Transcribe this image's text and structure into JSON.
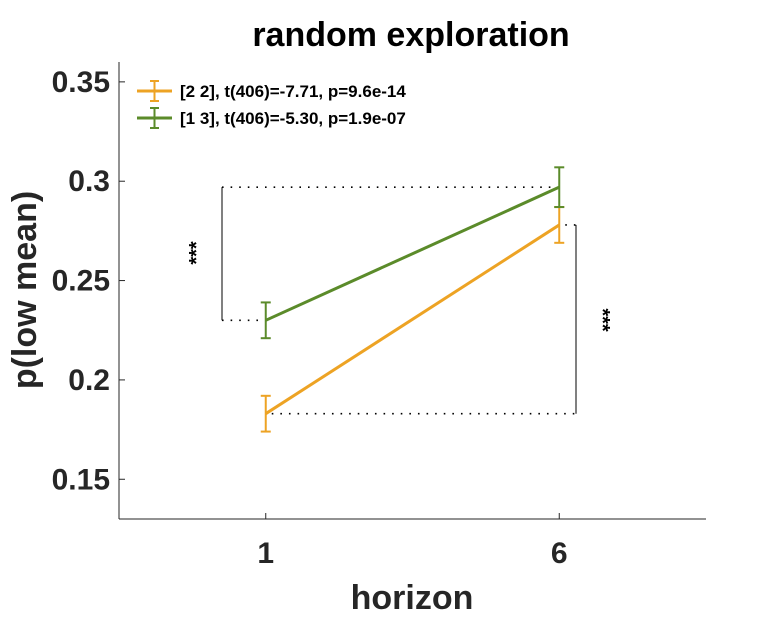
{
  "chart_data": {
    "type": "line",
    "title": "random exploration",
    "xlabel": "horizon",
    "ylabel": "p(low mean)",
    "categories": [
      "1",
      "6"
    ],
    "xlim": [
      0.5,
      2.5
    ],
    "ylim": [
      0.13,
      0.36
    ],
    "yticks": [
      0.15,
      0.2,
      0.25,
      0.3,
      0.35
    ],
    "ytick_labels": [
      "0.15",
      "0.2",
      "0.25",
      "0.3",
      "0.35"
    ],
    "grid": false,
    "legend_position": "top-left",
    "series": [
      {
        "name": "[2 2], t(406)=-7.71, p=9.6e-14",
        "color": "#EDA324",
        "values": [
          0.183,
          0.278
        ],
        "errors": [
          0.009,
          0.009
        ]
      },
      {
        "name": "[1 3], t(406)=-5.30, p=1.9e-07",
        "color": "#5B8B2A",
        "values": [
          0.23,
          0.297
        ],
        "errors": [
          0.009,
          0.01
        ]
      }
    ],
    "annotations": [
      {
        "text": "***",
        "between": [
          0.23,
          0.297
        ],
        "at": "horizon 1 (left)"
      },
      {
        "text": "***",
        "between": [
          0.183,
          0.278
        ],
        "at": "horizon 6 (right)"
      }
    ]
  }
}
